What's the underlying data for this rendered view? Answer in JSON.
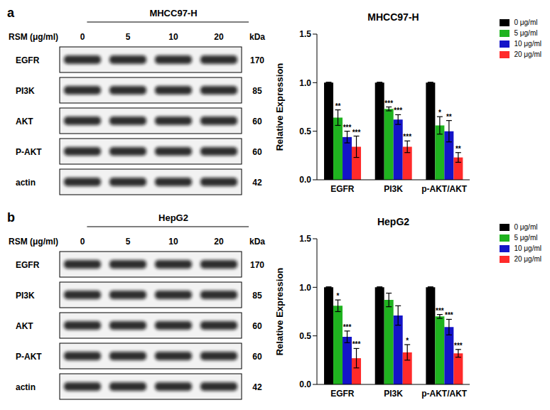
{
  "panels": [
    {
      "label": "a",
      "blot": {
        "cell_line": "MHCC97-H",
        "treatment_label": "RSM (μg/ml)",
        "doses": [
          0,
          5,
          10,
          20
        ],
        "size_header": "kDa",
        "rows": [
          {
            "protein": "EGFR",
            "kda": 170
          },
          {
            "protein": "PI3K",
            "kda": 85
          },
          {
            "protein": "AKT",
            "kda": 60
          },
          {
            "protein": "P-AKT",
            "kda": 60
          },
          {
            "protein": "actin",
            "kda": 42
          }
        ]
      }
    },
    {
      "label": "b",
      "blot": {
        "cell_line": "HepG2",
        "treatment_label": "RSM (μg/ml)",
        "doses": [
          0,
          5,
          10,
          20
        ],
        "size_header": "kDa",
        "rows": [
          {
            "protein": "EGFR",
            "kda": 170
          },
          {
            "protein": "PI3K",
            "kda": 85
          },
          {
            "protein": "AKT",
            "kda": 60
          },
          {
            "protein": "P-AKT",
            "kda": 60
          },
          {
            "protein": "actin",
            "kda": 42
          }
        ]
      }
    }
  ],
  "chart_data": [
    {
      "type": "bar",
      "title": "MHCC97-H",
      "ylabel": "Relative Expression",
      "categories": [
        "EGFR",
        "PI3K",
        "p-AKT/AKT"
      ],
      "ylim": [
        0,
        1.5
      ],
      "yticks": [
        {
          "value": 0,
          "label": "0.0"
        },
        {
          "value": 0.5,
          "label": "0.5"
        },
        {
          "value": 1,
          "label": "1.0"
        },
        {
          "value": 1.5,
          "label": "1.5"
        }
      ],
      "grid": false,
      "legend": "upper right",
      "series": [
        {
          "name": "0 μg/ml",
          "color": "#000000",
          "values": [
            1.0,
            1.0,
            1.0
          ],
          "errors": [
            0.005,
            0.005,
            0.005
          ],
          "significance": [
            null,
            null,
            null
          ]
        },
        {
          "name": "5 μg/ml",
          "color": "#1fb31f",
          "values": [
            0.64,
            0.73,
            0.56
          ],
          "errors": [
            0.08,
            0.02,
            0.09
          ],
          "significance": [
            "**",
            "***",
            "*"
          ]
        },
        {
          "name": "10 μg/ml",
          "color": "#1414c8",
          "values": [
            0.44,
            0.62,
            0.5
          ],
          "errors": [
            0.06,
            0.05,
            0.11
          ],
          "significance": [
            "***",
            "***",
            "**"
          ]
        },
        {
          "name": "20 μg/ml",
          "color": "#ff2a2a",
          "values": [
            0.34,
            0.34,
            0.23
          ],
          "errors": [
            0.11,
            0.06,
            0.05
          ],
          "significance": [
            "***",
            "***",
            "**"
          ]
        }
      ]
    },
    {
      "type": "bar",
      "title": "HepG2",
      "ylabel": "Relative Expression",
      "categories": [
        "EGFR",
        "PI3K",
        "p-AKT/AKT"
      ],
      "ylim": [
        0,
        1.5
      ],
      "yticks": [
        {
          "value": 0,
          "label": "0.0"
        },
        {
          "value": 0.5,
          "label": "0.5"
        },
        {
          "value": 1,
          "label": "1.0"
        },
        {
          "value": 1.5,
          "label": "1.5"
        }
      ],
      "grid": false,
      "legend": "upper right",
      "series": [
        {
          "name": "0 μg/ml",
          "color": "#000000",
          "values": [
            1.0,
            1.0,
            1.0
          ],
          "errors": [
            0.005,
            0.005,
            0.005
          ],
          "significance": [
            null,
            null,
            null
          ]
        },
        {
          "name": "5 μg/ml",
          "color": "#1fb31f",
          "values": [
            0.81,
            0.87,
            0.7
          ],
          "errors": [
            0.06,
            0.07,
            0.02
          ],
          "significance": [
            "*",
            null,
            "***"
          ]
        },
        {
          "name": "10 μg/ml",
          "color": "#1414c8",
          "values": [
            0.49,
            0.71,
            0.59
          ],
          "errors": [
            0.06,
            0.1,
            0.08
          ],
          "significance": [
            "***",
            null,
            "***"
          ]
        },
        {
          "name": "20 μg/ml",
          "color": "#ff2a2a",
          "values": [
            0.27,
            0.33,
            0.32
          ],
          "errors": [
            0.1,
            0.08,
            0.04
          ],
          "significance": [
            "***",
            "*",
            "***"
          ]
        }
      ]
    }
  ]
}
